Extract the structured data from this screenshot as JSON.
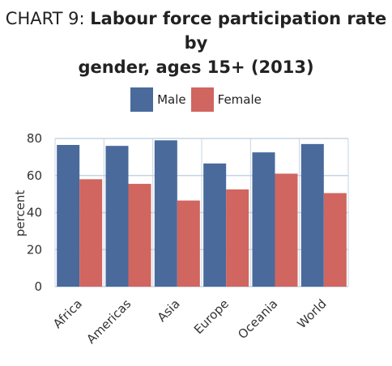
{
  "title_prefix": "CHART 9: ",
  "title_main_line1": "Labour force participation rate by",
  "title_main_line2": "gender, ages 15+ (2013)",
  "colors": {
    "male": "#4a6a9c",
    "female": "#d0665f",
    "grid": "#c6d5e3"
  },
  "chart_data": {
    "type": "bar",
    "title": "CHART 9: Labour force participation rate by gender, ages 15+ (2013)",
    "xlabel": "",
    "ylabel": "percent",
    "ylim": [
      0,
      80
    ],
    "yticks": [
      0,
      20,
      40,
      60,
      80
    ],
    "grid": true,
    "legend_position": "top-center",
    "categories": [
      "Africa",
      "Americas",
      "Asia",
      "Europe",
      "Oceania",
      "World"
    ],
    "series": [
      {
        "name": "Male",
        "values": [
          76.5,
          76,
          79,
          66.5,
          72.5,
          77
        ]
      },
      {
        "name": "Female",
        "values": [
          58,
          55.5,
          46.5,
          52.5,
          61,
          50.5
        ]
      }
    ]
  }
}
